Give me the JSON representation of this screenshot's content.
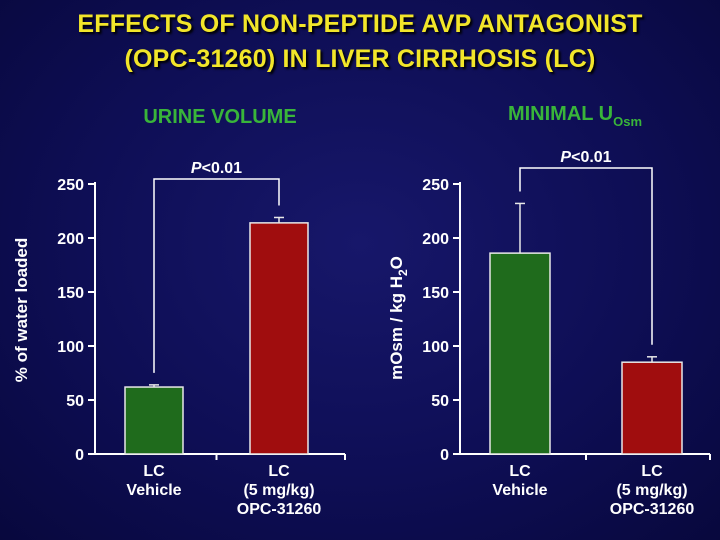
{
  "title": {
    "line1": "EFFECTS OF NON-PEPTIDE AVP ANTAGONIST",
    "line2": "(OPC-31260) IN LIVER CIRRHOSIS (LC)"
  },
  "colors": {
    "title": "#f2e62a",
    "panel_title": "#39b53a",
    "text": "#ffffff",
    "vehicle_bar": "#1f6b1c",
    "opc_bar": "#a00d0e"
  },
  "chart_data": [
    {
      "type": "bar",
      "title": "URINE VOLUME",
      "ylabel": "% of water loaded",
      "ylim": [
        0,
        250
      ],
      "yticks": [
        "0",
        "50",
        "100",
        "150",
        "200",
        "250"
      ],
      "categories": [
        [
          "LC",
          "Vehicle"
        ],
        [
          "LC",
          "(5 mg/kg)",
          "OPC-31260"
        ]
      ],
      "values": [
        62,
        214
      ],
      "errors": [
        2,
        5
      ],
      "significance": {
        "p": "P",
        "rest": "<0.01"
      },
      "legend": "none",
      "grid": false
    },
    {
      "type": "bar",
      "title": "MINIMAL U",
      "title_subscript": "Osm",
      "ylabel": "mOsm / kg H",
      "ylabel_subscript": "2",
      "ylabel_suffix": "O",
      "ylim": [
        0,
        250
      ],
      "yticks": [
        "0",
        "50",
        "100",
        "150",
        "200",
        "250"
      ],
      "categories": [
        [
          "LC",
          "Vehicle"
        ],
        [
          "LC",
          "(5 mg/kg)",
          "OPC-31260"
        ]
      ],
      "values": [
        186,
        85
      ],
      "errors": [
        46,
        5
      ],
      "significance": {
        "p": "P",
        "rest": "<0.01"
      },
      "legend": "none",
      "grid": false
    }
  ]
}
